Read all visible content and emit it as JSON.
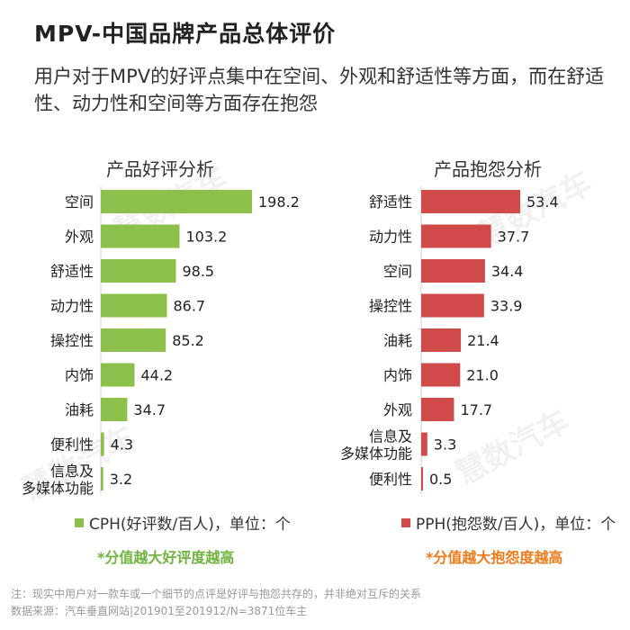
{
  "header": {
    "title": "MPV-中国品牌产品总体评价",
    "subtitle": "用户对于MPV的好评点集中在空间、外观和舒适性等方面，而在舒适性、动力性和空间等方面存在抱怨"
  },
  "watermark": "慧数汽车",
  "colors": {
    "positive": "#8dc04a",
    "negative": "#cf4a48",
    "positive_note": "#6fb43f",
    "negative_note": "#f07a1a"
  },
  "chart_data": [
    {
      "type": "bar",
      "orientation": "horizontal",
      "title": "产品好评分析",
      "categories": [
        "空间",
        "外观",
        "舒适性",
        "动力性",
        "操控性",
        "内饰",
        "油耗",
        "便利性",
        "信息及\n多媒体功能"
      ],
      "values": [
        198.2,
        103.2,
        98.5,
        86.7,
        85.2,
        44.2,
        34.7,
        4.3,
        3.2
      ],
      "value_labels": [
        "198.2",
        "103.2",
        "98.5",
        "86.7",
        "85.2",
        "44.2",
        "34.7",
        "4.3",
        "3.2"
      ],
      "legend": "CPH(好评数/百人)，单位：个",
      "note": "*分值越大好评度越高",
      "color": "#8dc04a"
    },
    {
      "type": "bar",
      "orientation": "horizontal",
      "title": "产品抱怨分析",
      "categories": [
        "舒适性",
        "动力性",
        "空间",
        "操控性",
        "油耗",
        "内饰",
        "外观",
        "信息及\n多媒体功能",
        "便利性"
      ],
      "values": [
        53.4,
        37.7,
        34.4,
        33.9,
        21.4,
        21.0,
        17.7,
        3.3,
        0.5
      ],
      "value_labels": [
        "53.4",
        "37.7",
        "34.4",
        "33.9",
        "21.4",
        "21.0",
        "17.7",
        "3.3",
        "0.5"
      ],
      "legend": "PPH(抱怨数/百人)，单位：个",
      "note": "*分值越大抱怨度越高",
      "color": "#cf4a48"
    }
  ],
  "footer": {
    "note": "注：现实中用户对一款车或一个细节的点评是好评与抱怨共存的，并非绝对互斥的关系",
    "source": "数据来源：汽车垂直网站|201901至201912/N=3871位车主"
  }
}
